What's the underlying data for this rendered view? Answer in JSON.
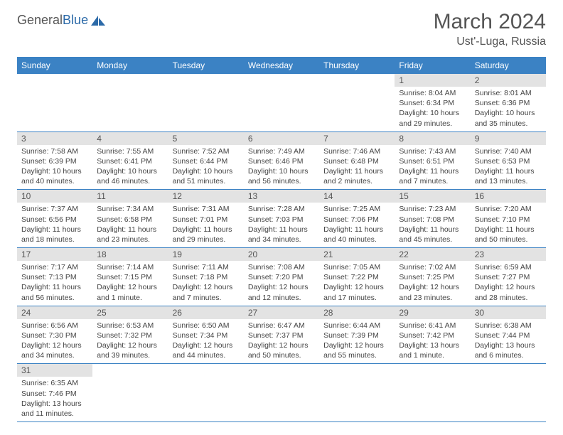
{
  "brand": {
    "name_part1": "General",
    "name_part2": "Blue"
  },
  "title": "March 2024",
  "location": "Ust'-Luga, Russia",
  "colors": {
    "header_bg": "#3b82c4",
    "header_fg": "#ffffff",
    "daynum_bg": "#e3e3e3",
    "border": "#3b82c4",
    "text": "#555555",
    "body_text": "#444444"
  },
  "fonts": {
    "title_size": 30,
    "location_size": 16,
    "header_size": 12,
    "daynum_size": 12,
    "content_size": 10.5
  },
  "layout": {
    "cols": 7,
    "rows": 6
  },
  "weekdays": [
    "Sunday",
    "Monday",
    "Tuesday",
    "Wednesday",
    "Thursday",
    "Friday",
    "Saturday"
  ],
  "days": [
    {
      "n": 1,
      "sunrise": "8:04 AM",
      "sunset": "6:34 PM",
      "daylight": "10 hours and 29 minutes."
    },
    {
      "n": 2,
      "sunrise": "8:01 AM",
      "sunset": "6:36 PM",
      "daylight": "10 hours and 35 minutes."
    },
    {
      "n": 3,
      "sunrise": "7:58 AM",
      "sunset": "6:39 PM",
      "daylight": "10 hours and 40 minutes."
    },
    {
      "n": 4,
      "sunrise": "7:55 AM",
      "sunset": "6:41 PM",
      "daylight": "10 hours and 46 minutes."
    },
    {
      "n": 5,
      "sunrise": "7:52 AM",
      "sunset": "6:44 PM",
      "daylight": "10 hours and 51 minutes."
    },
    {
      "n": 6,
      "sunrise": "7:49 AM",
      "sunset": "6:46 PM",
      "daylight": "10 hours and 56 minutes."
    },
    {
      "n": 7,
      "sunrise": "7:46 AM",
      "sunset": "6:48 PM",
      "daylight": "11 hours and 2 minutes."
    },
    {
      "n": 8,
      "sunrise": "7:43 AM",
      "sunset": "6:51 PM",
      "daylight": "11 hours and 7 minutes."
    },
    {
      "n": 9,
      "sunrise": "7:40 AM",
      "sunset": "6:53 PM",
      "daylight": "11 hours and 13 minutes."
    },
    {
      "n": 10,
      "sunrise": "7:37 AM",
      "sunset": "6:56 PM",
      "daylight": "11 hours and 18 minutes."
    },
    {
      "n": 11,
      "sunrise": "7:34 AM",
      "sunset": "6:58 PM",
      "daylight": "11 hours and 23 minutes."
    },
    {
      "n": 12,
      "sunrise": "7:31 AM",
      "sunset": "7:01 PM",
      "daylight": "11 hours and 29 minutes."
    },
    {
      "n": 13,
      "sunrise": "7:28 AM",
      "sunset": "7:03 PM",
      "daylight": "11 hours and 34 minutes."
    },
    {
      "n": 14,
      "sunrise": "7:25 AM",
      "sunset": "7:06 PM",
      "daylight": "11 hours and 40 minutes."
    },
    {
      "n": 15,
      "sunrise": "7:23 AM",
      "sunset": "7:08 PM",
      "daylight": "11 hours and 45 minutes."
    },
    {
      "n": 16,
      "sunrise": "7:20 AM",
      "sunset": "7:10 PM",
      "daylight": "11 hours and 50 minutes."
    },
    {
      "n": 17,
      "sunrise": "7:17 AM",
      "sunset": "7:13 PM",
      "daylight": "11 hours and 56 minutes."
    },
    {
      "n": 18,
      "sunrise": "7:14 AM",
      "sunset": "7:15 PM",
      "daylight": "12 hours and 1 minute."
    },
    {
      "n": 19,
      "sunrise": "7:11 AM",
      "sunset": "7:18 PM",
      "daylight": "12 hours and 7 minutes."
    },
    {
      "n": 20,
      "sunrise": "7:08 AM",
      "sunset": "7:20 PM",
      "daylight": "12 hours and 12 minutes."
    },
    {
      "n": 21,
      "sunrise": "7:05 AM",
      "sunset": "7:22 PM",
      "daylight": "12 hours and 17 minutes."
    },
    {
      "n": 22,
      "sunrise": "7:02 AM",
      "sunset": "7:25 PM",
      "daylight": "12 hours and 23 minutes."
    },
    {
      "n": 23,
      "sunrise": "6:59 AM",
      "sunset": "7:27 PM",
      "daylight": "12 hours and 28 minutes."
    },
    {
      "n": 24,
      "sunrise": "6:56 AM",
      "sunset": "7:30 PM",
      "daylight": "12 hours and 34 minutes."
    },
    {
      "n": 25,
      "sunrise": "6:53 AM",
      "sunset": "7:32 PM",
      "daylight": "12 hours and 39 minutes."
    },
    {
      "n": 26,
      "sunrise": "6:50 AM",
      "sunset": "7:34 PM",
      "daylight": "12 hours and 44 minutes."
    },
    {
      "n": 27,
      "sunrise": "6:47 AM",
      "sunset": "7:37 PM",
      "daylight": "12 hours and 50 minutes."
    },
    {
      "n": 28,
      "sunrise": "6:44 AM",
      "sunset": "7:39 PM",
      "daylight": "12 hours and 55 minutes."
    },
    {
      "n": 29,
      "sunrise": "6:41 AM",
      "sunset": "7:42 PM",
      "daylight": "13 hours and 1 minute."
    },
    {
      "n": 30,
      "sunrise": "6:38 AM",
      "sunset": "7:44 PM",
      "daylight": "13 hours and 6 minutes."
    },
    {
      "n": 31,
      "sunrise": "6:35 AM",
      "sunset": "7:46 PM",
      "daylight": "13 hours and 11 minutes."
    }
  ],
  "first_day_col": 5,
  "labels": {
    "sunrise": "Sunrise:",
    "sunset": "Sunset:",
    "daylight": "Daylight:"
  }
}
